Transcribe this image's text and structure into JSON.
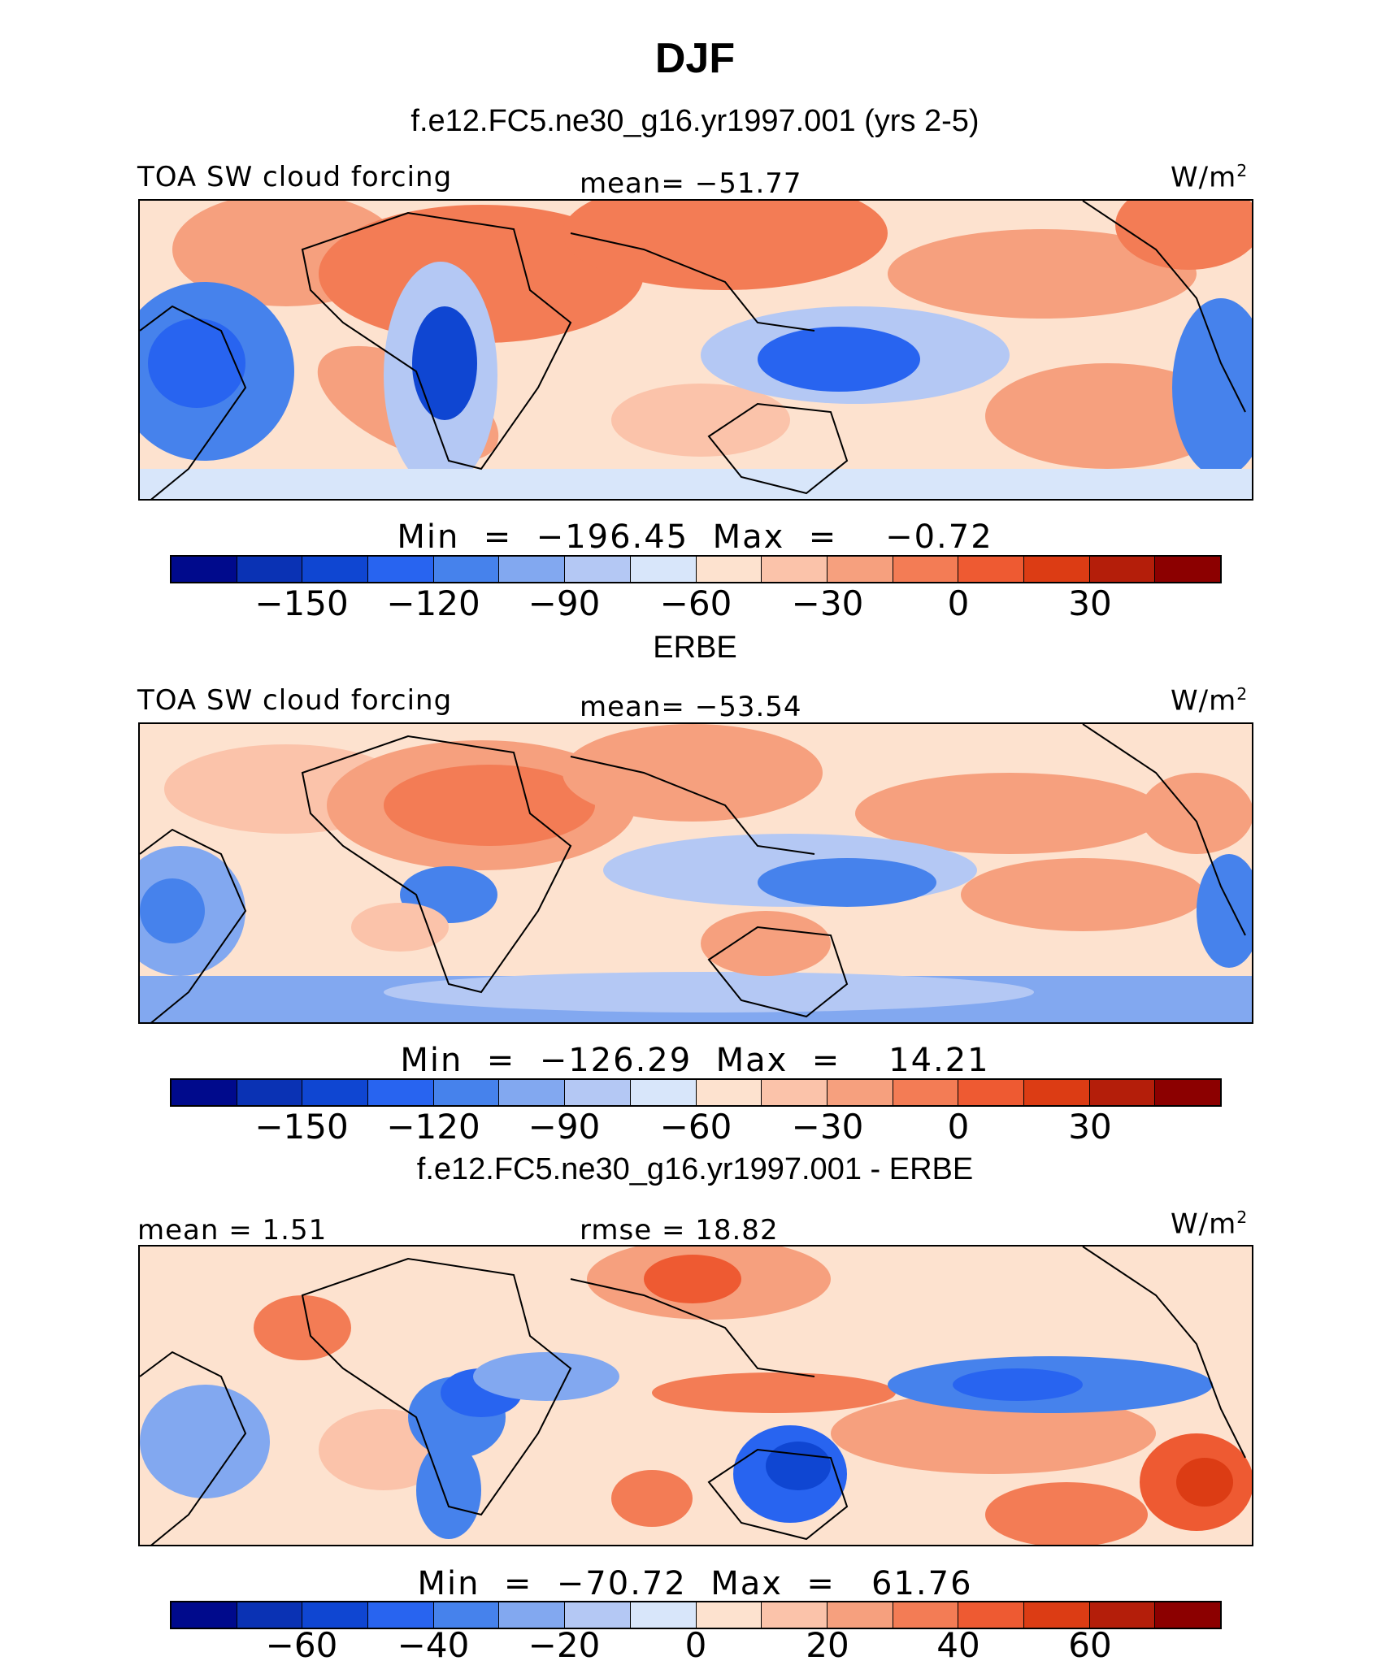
{
  "figure": {
    "title": "DJF"
  },
  "panels": [
    {
      "subtitle": "f.e12.FC5.ne30_g16.yr1997.001 (yrs 2-5)",
      "left_label": "TOA SW cloud forcing",
      "center_label": "mean= −51.77",
      "units": "W/m",
      "units_exp": "2",
      "minmax": "Min  =  −196.45  Max  =    −0.72",
      "ticks": [
        "−150",
        "−120",
        "−90",
        "−60",
        "−30",
        "0",
        "30"
      ]
    },
    {
      "subtitle": "ERBE",
      "left_label": "TOA SW cloud forcing",
      "center_label": "mean= −53.54",
      "units": "W/m",
      "units_exp": "2",
      "minmax": "Min  =  −126.29  Max  =    14.21",
      "ticks": [
        "−150",
        "−120",
        "−90",
        "−60",
        "−30",
        "0",
        "30"
      ]
    },
    {
      "subtitle": "f.e12.FC5.ne30_g16.yr1997.001 - ERBE",
      "left_label": "mean =    1.51",
      "center_label": "rmse =   18.82",
      "units": "W/m",
      "units_exp": "2",
      "minmax": "Min  =  −70.72  Max  =   61.76",
      "ticks": [
        "−60",
        "−40",
        "−20",
        "0",
        "20",
        "40",
        "60"
      ]
    }
  ],
  "colors": {
    "scale": [
      "#000a8c",
      "#0a32b4",
      "#0f46d2",
      "#2864f0",
      "#4682ec",
      "#82a8f0",
      "#b4c8f4",
      "#d8e6fa",
      "#fde2cf",
      "#fbc3aa",
      "#f6a07e",
      "#f37c55",
      "#ee5a32",
      "#dc3c14",
      "#b41e0a",
      "#8c0000"
    ]
  }
}
